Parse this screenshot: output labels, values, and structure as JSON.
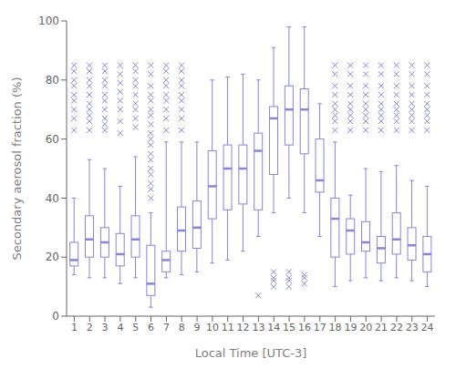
{
  "chart_data": {
    "type": "box",
    "xlabel": "Local Time [UTC-3]",
    "ylabel": "Secondary aerosol fraction (%)",
    "categories": [
      "1",
      "2",
      "3",
      "4",
      "5",
      "6",
      "7",
      "8",
      "9",
      "10",
      "11",
      "12",
      "13",
      "14",
      "15",
      "16",
      "17",
      "18",
      "19",
      "20",
      "21",
      "22",
      "23",
      "24"
    ],
    "boxes": [
      {
        "q1": 17,
        "median": 19,
        "q3": 25,
        "whislo": 14,
        "whishi": 40,
        "fliers": [
          63,
          67,
          70,
          73,
          75,
          78,
          80,
          83,
          85
        ]
      },
      {
        "q1": 20,
        "median": 26,
        "q3": 34,
        "whislo": 13,
        "whishi": 53,
        "fliers": [
          63,
          66,
          68,
          70,
          72,
          75,
          78,
          80,
          83,
          85
        ]
      },
      {
        "q1": 20,
        "median": 25,
        "q3": 30,
        "whislo": 13,
        "whishi": 50,
        "fliers": [
          63,
          65,
          67,
          70,
          73,
          75,
          78,
          80,
          83,
          85
        ]
      },
      {
        "q1": 17,
        "median": 21,
        "q3": 28,
        "whislo": 11,
        "whishi": 44,
        "fliers": [
          62,
          66,
          70,
          73,
          76,
          79,
          82,
          85
        ]
      },
      {
        "q1": 20,
        "median": 26,
        "q3": 34,
        "whislo": 13,
        "whishi": 54,
        "fliers": [
          64,
          67,
          70,
          72,
          75,
          78,
          80,
          83,
          85
        ]
      },
      {
        "q1": 7,
        "median": 11,
        "q3": 24,
        "whislo": 3,
        "whishi": 35,
        "fliers": [
          40,
          43,
          45,
          48,
          50,
          53,
          55,
          58,
          60,
          62,
          65,
          68,
          70,
          73,
          75,
          78,
          82,
          85
        ]
      },
      {
        "q1": 15,
        "median": 19,
        "q3": 22,
        "whislo": 13,
        "whishi": 59,
        "fliers": [
          63,
          67,
          70,
          73,
          75,
          78,
          80,
          83,
          85
        ]
      },
      {
        "q1": 22,
        "median": 29,
        "q3": 37,
        "whislo": 14,
        "whishi": 59,
        "fliers": [
          63,
          67,
          70,
          73,
          75,
          78,
          80,
          83,
          85
        ]
      },
      {
        "q1": 23,
        "median": 30,
        "q3": 39,
        "whislo": 15,
        "whishi": 59,
        "fliers": []
      },
      {
        "q1": 33,
        "median": 44,
        "q3": 56,
        "whislo": 18,
        "whishi": 80,
        "fliers": []
      },
      {
        "q1": 36,
        "median": 50,
        "q3": 58,
        "whislo": 19,
        "whishi": 81,
        "fliers": []
      },
      {
        "q1": 38,
        "median": 50,
        "q3": 58,
        "whislo": 22,
        "whishi": 82,
        "fliers": []
      },
      {
        "q1": 36,
        "median": 56,
        "q3": 62,
        "whislo": 27,
        "whishi": 80,
        "fliers": [
          7
        ]
      },
      {
        "q1": 48,
        "median": 67,
        "q3": 71,
        "whislo": 35,
        "whishi": 91,
        "fliers": [
          10,
          12,
          13,
          15
        ]
      },
      {
        "q1": 58,
        "median": 70,
        "q3": 78,
        "whislo": 40,
        "whishi": 98,
        "fliers": [
          10,
          12,
          13,
          15
        ]
      },
      {
        "q1": 55,
        "median": 70,
        "q3": 77,
        "whislo": 35,
        "whishi": 98,
        "fliers": [
          11,
          13,
          14
        ]
      },
      {
        "q1": 42,
        "median": 46,
        "q3": 60,
        "whislo": 27,
        "whishi": 72,
        "fliers": []
      },
      {
        "q1": 20,
        "median": 33,
        "q3": 40,
        "whislo": 10,
        "whishi": 59,
        "fliers": [
          63,
          66,
          68,
          70,
          72,
          75,
          78,
          82,
          85
        ]
      },
      {
        "q1": 21,
        "median": 29,
        "q3": 33,
        "whislo": 12,
        "whishi": 41,
        "fliers": [
          63,
          66,
          68,
          70,
          72,
          75,
          78,
          82,
          85
        ]
      },
      {
        "q1": 22,
        "median": 25,
        "q3": 32,
        "whislo": 13,
        "whishi": 50,
        "fliers": [
          63,
          66,
          68,
          70,
          72,
          75,
          78,
          82,
          85
        ]
      },
      {
        "q1": 18,
        "median": 23,
        "q3": 27,
        "whislo": 12,
        "whishi": 49,
        "fliers": [
          63,
          66,
          68,
          70,
          72,
          75,
          78,
          82,
          85
        ]
      },
      {
        "q1": 21,
        "median": 26,
        "q3": 35,
        "whislo": 13,
        "whishi": 51,
        "fliers": [
          63,
          66,
          68,
          70,
          72,
          75,
          78,
          82,
          85
        ]
      },
      {
        "q1": 19,
        "median": 24,
        "q3": 30,
        "whislo": 12,
        "whishi": 46,
        "fliers": [
          63,
          66,
          68,
          70,
          72,
          75,
          78,
          82,
          85
        ]
      },
      {
        "q1": 15,
        "median": 21,
        "q3": 27,
        "whislo": 10,
        "whishi": 44,
        "fliers": [
          63,
          66,
          68,
          70,
          72,
          75,
          78,
          82,
          85
        ]
      }
    ],
    "ylim": [
      0,
      100
    ],
    "yticks": [
      0,
      20,
      40,
      60,
      80,
      100
    ],
    "grid": false,
    "color": "#8884d8",
    "marker": "x"
  }
}
